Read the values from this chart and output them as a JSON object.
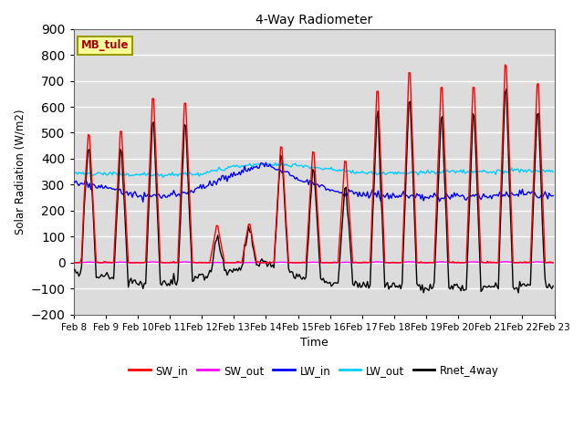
{
  "title": "4-Way Radiometer",
  "xlabel": "Time",
  "ylabel": "Solar Radiation (W/m2)",
  "ylim": [
    -200,
    900
  ],
  "xlim": [
    0,
    360
  ],
  "yticks": [
    -200,
    -100,
    0,
    100,
    200,
    300,
    400,
    500,
    600,
    700,
    800,
    900
  ],
  "xtick_labels": [
    "Feb 8",
    "Feb 9",
    "Feb 10",
    "Feb 11",
    "Feb 12",
    "Feb 13",
    "Feb 14",
    "Feb 15",
    "Feb 16",
    "Feb 17",
    "Feb 18",
    "Feb 19",
    "Feb 20",
    "Feb 21",
    "Feb 22",
    "Feb 23"
  ],
  "xtick_positions": [
    0,
    24,
    48,
    72,
    96,
    120,
    144,
    168,
    192,
    216,
    240,
    264,
    288,
    312,
    336,
    360
  ],
  "station_label": "MB_tule",
  "colors": {
    "SW_in": "#FF0000",
    "SW_out": "#FF00FF",
    "LW_in": "#0000FF",
    "LW_out": "#00CCFF",
    "Rnet_4way": "#000000"
  },
  "background_color": "#DCDCDC",
  "grid_color": "#FFFFFF",
  "legend_labels": [
    "SW_in",
    "SW_out",
    "LW_in",
    "LW_out",
    "Rnet_4way"
  ]
}
